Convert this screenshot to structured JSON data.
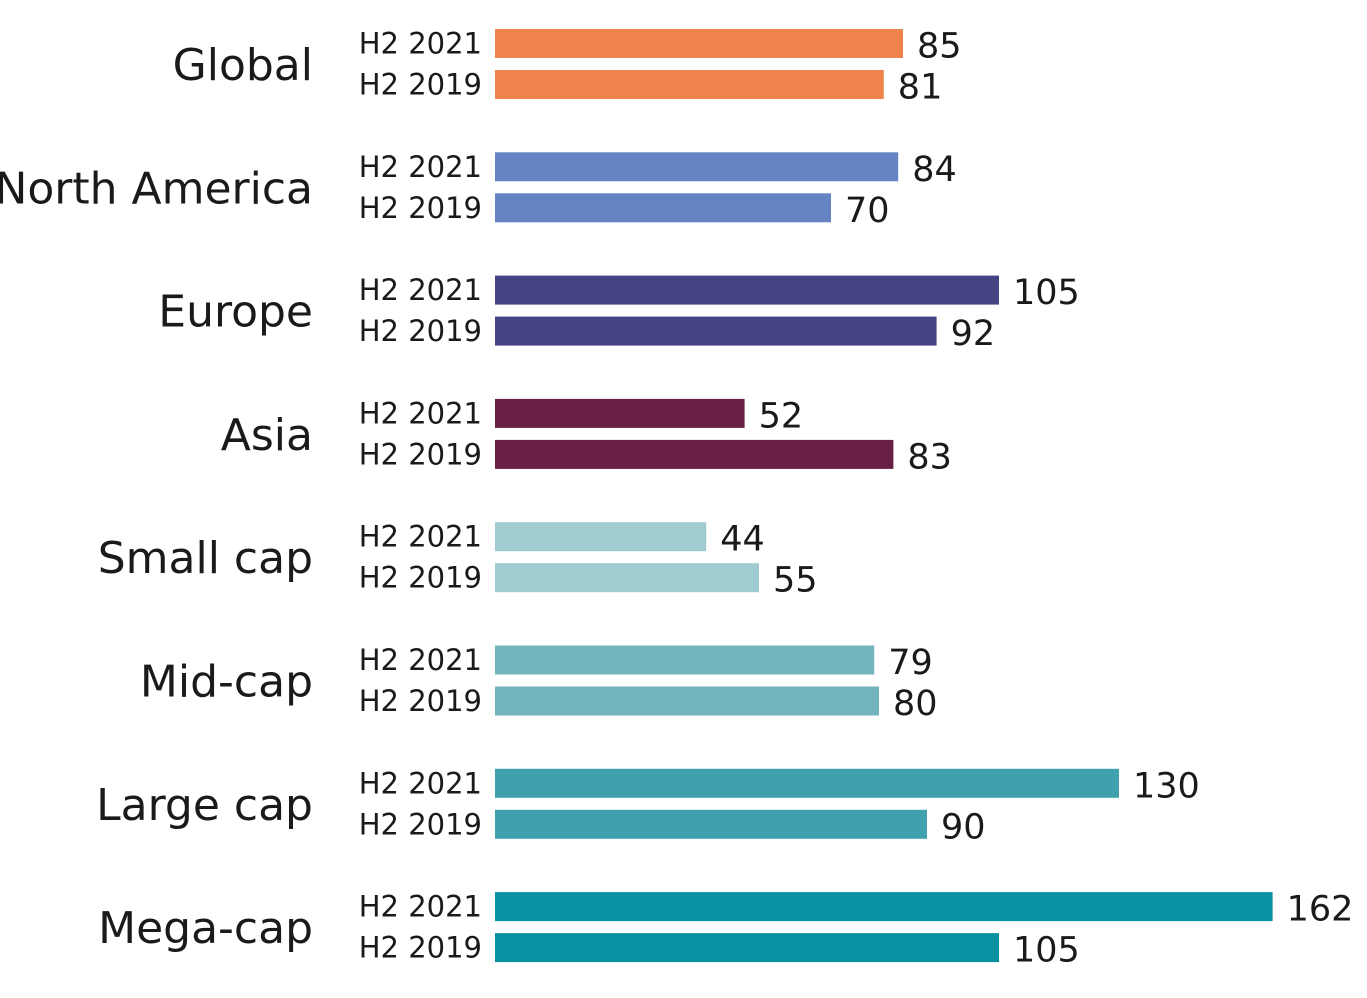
{
  "chart_data": {
    "type": "bar",
    "orientation": "horizontal",
    "categories": [
      "Global",
      "North America",
      "Europe",
      "Asia",
      "Small cap",
      "Mid-cap",
      "Large cap",
      "Mega-cap"
    ],
    "series": [
      {
        "name": "H2 2021",
        "values": [
          85,
          84,
          105,
          52,
          44,
          79,
          130,
          162
        ]
      },
      {
        "name": "H2 2019",
        "values": [
          81,
          70,
          92,
          83,
          55,
          80,
          90,
          105
        ]
      }
    ],
    "category_colors": [
      "#ee834b",
      "#6484c4",
      "#454384",
      "#6a2045",
      "#9fcbd1",
      "#72b3be",
      "#3fa1ae",
      "#0891a1"
    ],
    "title": "",
    "xlabel": "",
    "ylabel": "",
    "xlim": [
      0,
      162
    ],
    "grid": false,
    "legend": "none"
  }
}
